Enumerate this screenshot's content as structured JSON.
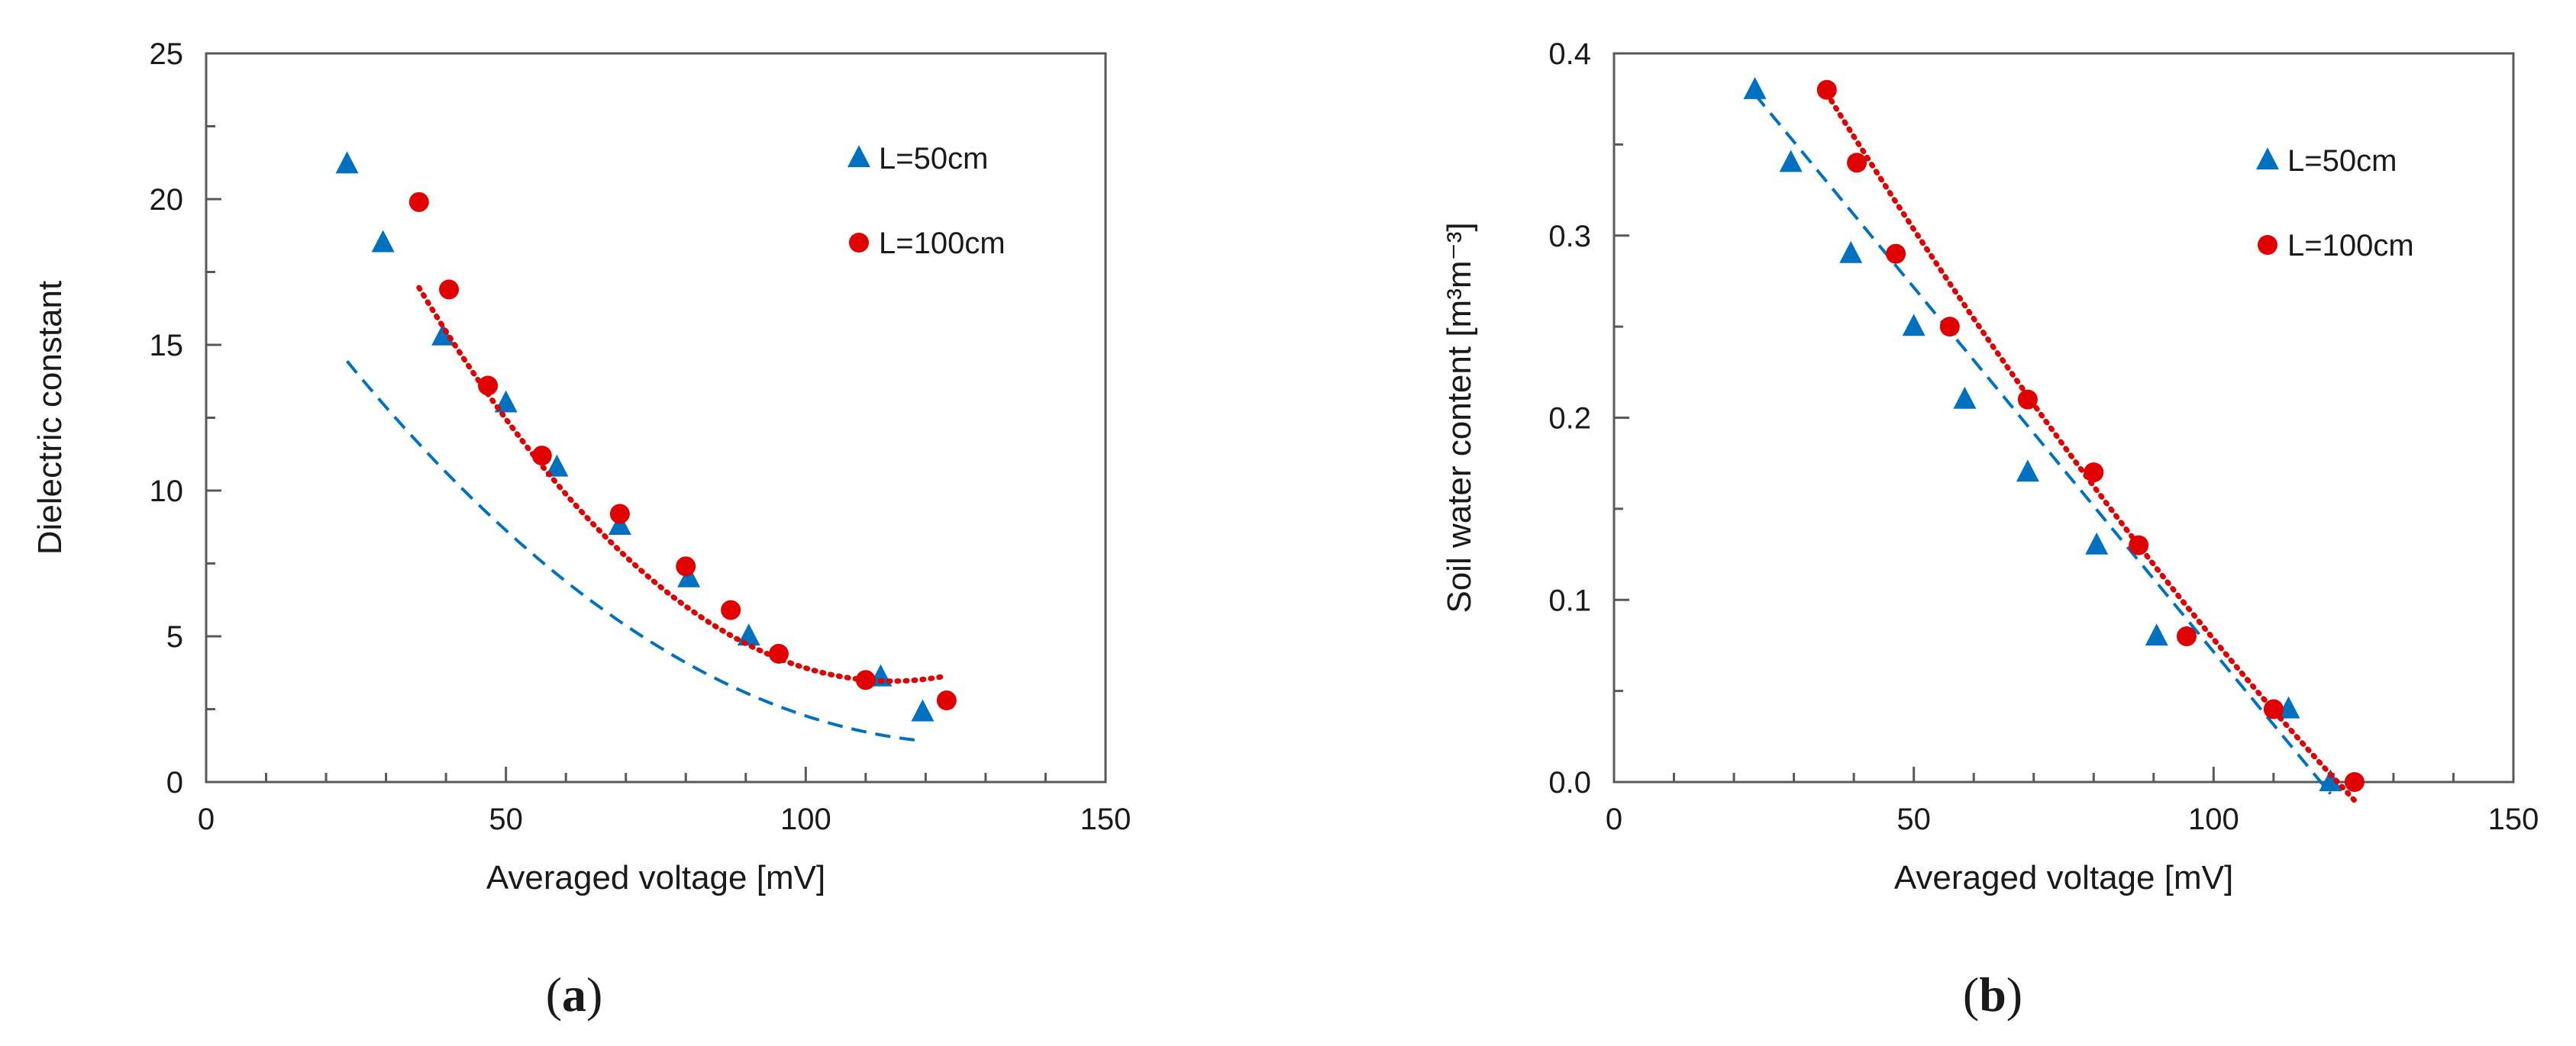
{
  "chart_data": [
    {
      "type": "scatter",
      "panel_label": "a",
      "xlabel": "Averaged voltage [mV]",
      "ylabel": "Dielectric constant",
      "xlim": [
        0,
        150
      ],
      "ylim": [
        0,
        25
      ],
      "x_ticks": [
        0,
        50,
        100,
        150
      ],
      "y_ticks": [
        0,
        5,
        10,
        15,
        20,
        25
      ],
      "y_decimals": 0,
      "x_minor_ticks": 10,
      "y_minor_ticks": 2.5,
      "grid": false,
      "legend_position": "top-right",
      "series": [
        {
          "name": "L=50cm",
          "marker": "triangle",
          "color": "#0070C0",
          "line_style": "dashed",
          "x": [
            23.5,
            29.5,
            39.5,
            50.0,
            58.5,
            69.0,
            80.5,
            90.5,
            112.5,
            119.5
          ],
          "y": [
            21.2,
            18.5,
            15.3,
            13.0,
            10.8,
            8.8,
            7.0,
            5.0,
            3.6,
            2.4
          ],
          "fit": [
            21.0,
            -0.3073,
            0.0012
          ]
        },
        {
          "name": "L=100cm",
          "marker": "circle",
          "color": "#E00000",
          "line_style": "dotted",
          "x": [
            35.5,
            40.5,
            47.0,
            56.0,
            69.0,
            80.0,
            87.5,
            95.5,
            110.0,
            123.5
          ],
          "y": [
            19.9,
            16.9,
            13.6,
            11.2,
            9.2,
            7.4,
            5.9,
            4.4,
            3.5,
            2.8
          ],
          "fit": [
            31.85,
            -0.4964,
            0.00217
          ]
        }
      ]
    },
    {
      "type": "scatter",
      "panel_label": "b",
      "xlabel": "Averaged voltage [mV]",
      "ylabel": "Soil water content [m³m⁻³]",
      "xlim": [
        0,
        150
      ],
      "ylim": [
        0,
        0.4
      ],
      "x_ticks": [
        0,
        50,
        100,
        150
      ],
      "y_ticks": [
        0.0,
        0.1,
        0.2,
        0.3,
        0.4
      ],
      "y_decimals": 1,
      "x_minor_ticks": 10,
      "y_minor_ticks": 0.05,
      "grid": false,
      "legend_position": "top-right",
      "series": [
        {
          "name": "L=50cm",
          "marker": "triangle",
          "color": "#0070C0",
          "line_style": "dashed",
          "x": [
            23.5,
            29.5,
            39.5,
            50.0,
            58.5,
            69.0,
            80.5,
            90.5,
            112.5,
            119.5
          ],
          "y": [
            0.38,
            0.34,
            0.29,
            0.25,
            0.21,
            0.17,
            0.13,
            0.08,
            0.04,
            0.0
          ],
          "fit": [
            0.4715,
            -0.004,
            0.0
          ]
        },
        {
          "name": "L=100cm",
          "marker": "circle",
          "color": "#E00000",
          "line_style": "dotted",
          "x": [
            35.5,
            40.5,
            47.0,
            56.0,
            69.0,
            80.0,
            87.5,
            95.5,
            110.0,
            123.5
          ],
          "y": [
            0.38,
            0.34,
            0.29,
            0.25,
            0.21,
            0.17,
            0.13,
            0.08,
            0.04,
            0.0
          ],
          "fit": [
            0.5784,
            -0.006,
            1e-05
          ]
        }
      ]
    }
  ]
}
